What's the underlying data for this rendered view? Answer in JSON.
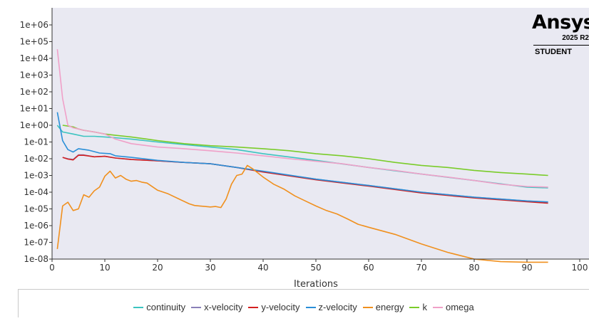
{
  "branding": {
    "name": "Ansys",
    "version": "2025 R2",
    "edition": "STUDENT"
  },
  "chart_data": {
    "type": "line",
    "title": "",
    "xlabel": "Iterations",
    "ylabel": "",
    "yscale": "log",
    "xlim": [
      0,
      100
    ],
    "ylim": [
      1e-08,
      1000000.0
    ],
    "x_ticks": [
      "0",
      "10",
      "20",
      "30",
      "40",
      "50",
      "60",
      "70",
      "80",
      "90",
      "100"
    ],
    "y_ticks": [
      "1e-08",
      "1e-07",
      "1e-06",
      "1e-05",
      "1e-04",
      "1e-03",
      "1e-02",
      "1e-01",
      "1e+00",
      "1e+01",
      "1e+02",
      "1e+03",
      "1e+04",
      "1e+05",
      "1e+06"
    ],
    "grid": false,
    "legend_position": "bottom",
    "series": [
      {
        "name": "continuity",
        "color": "#3cc4c0",
        "x": [
          1,
          2,
          4,
          6,
          8,
          10,
          12,
          15,
          20,
          25,
          30,
          35,
          40,
          50,
          60,
          70,
          80,
          90,
          94
        ],
        "y": [
          1.0,
          0.4,
          0.3,
          0.22,
          0.22,
          0.2,
          0.18,
          0.15,
          0.1,
          0.07,
          0.05,
          0.035,
          0.02,
          0.008,
          0.003,
          0.0012,
          0.0005,
          0.0002,
          0.00018
        ]
      },
      {
        "name": "x-velocity",
        "color": "#8a80b8",
        "x": [
          2,
          3,
          4,
          5,
          6,
          8,
          10,
          12,
          15,
          20,
          25,
          30,
          35,
          40,
          50,
          60,
          70,
          80,
          90,
          94
        ],
        "y": [
          0.012,
          0.01,
          0.009,
          0.017,
          0.017,
          0.013,
          0.014,
          0.011,
          0.009,
          0.0075,
          0.006,
          0.005,
          0.003,
          0.0017,
          0.0006,
          0.00025,
          0.0001,
          5e-05,
          3e-05,
          2.5e-05
        ]
      },
      {
        "name": "y-velocity",
        "color": "#d42020",
        "x": [
          2,
          3,
          4,
          5,
          6,
          8,
          10,
          12,
          15,
          20,
          25,
          30,
          35,
          40,
          50,
          60,
          70,
          80,
          90,
          94
        ],
        "y": [
          0.012,
          0.0095,
          0.0085,
          0.016,
          0.016,
          0.013,
          0.014,
          0.011,
          0.009,
          0.0075,
          0.006,
          0.005,
          0.003,
          0.0016,
          0.00055,
          0.00023,
          9e-05,
          4.5e-05,
          2.7e-05,
          2.2e-05
        ]
      },
      {
        "name": "z-velocity",
        "color": "#2a8fd8",
        "x": [
          1,
          2,
          3,
          4,
          5,
          7,
          9,
          11,
          12,
          15,
          20,
          25,
          30,
          35,
          40,
          50,
          60,
          70,
          80,
          90,
          94
        ],
        "y": [
          6,
          0.12,
          0.035,
          0.025,
          0.04,
          0.032,
          0.022,
          0.02,
          0.015,
          0.012,
          0.008,
          0.006,
          0.005,
          0.003,
          0.0018,
          0.0006,
          0.00025,
          0.0001,
          5e-05,
          3e-05,
          2.6e-05
        ]
      },
      {
        "name": "energy",
        "color": "#f0901e",
        "x": [
          1,
          2,
          3,
          4,
          5,
          6,
          7,
          8,
          9,
          10,
          11,
          12,
          13,
          14,
          15,
          16,
          17,
          18,
          20,
          22,
          24,
          26,
          27,
          28,
          29,
          30,
          31,
          32,
          33,
          34,
          35,
          36,
          37,
          38,
          40,
          42,
          44,
          46,
          48,
          50,
          52,
          54,
          56,
          58,
          60,
          65,
          70,
          75,
          80,
          85,
          90,
          94
        ],
        "y": [
          4e-08,
          1.5e-05,
          2.5e-05,
          8e-06,
          1e-05,
          7e-05,
          5e-05,
          0.00012,
          0.0002,
          0.0009,
          0.0018,
          0.0007,
          0.001,
          0.0006,
          0.00045,
          0.0005,
          0.0004,
          0.00035,
          0.00013,
          8e-05,
          4e-05,
          2e-05,
          1.6e-05,
          1.5e-05,
          1.4e-05,
          1.3e-05,
          1.4e-05,
          1.2e-05,
          4e-05,
          0.0003,
          0.001,
          0.0012,
          0.004,
          0.0025,
          0.0008,
          0.0003,
          0.00015,
          6e-05,
          3e-05,
          1.5e-05,
          8e-06,
          5e-06,
          2.5e-06,
          1.2e-06,
          8e-07,
          3e-07,
          8e-08,
          2.5e-08,
          1e-08,
          7e-09,
          6.5e-09,
          6.5e-09
        ]
      },
      {
        "name": "k",
        "color": "#7acc2a",
        "x": [
          2,
          3,
          4,
          5,
          6,
          8,
          10,
          12,
          15,
          18,
          20,
          25,
          30,
          35,
          40,
          45,
          50,
          55,
          60,
          65,
          70,
          75,
          80,
          85,
          90,
          94
        ],
        "y": [
          1,
          0.9,
          0.8,
          0.6,
          0.5,
          0.4,
          0.3,
          0.25,
          0.2,
          0.15,
          0.12,
          0.08,
          0.06,
          0.05,
          0.04,
          0.03,
          0.02,
          0.015,
          0.01,
          0.006,
          0.004,
          0.003,
          0.002,
          0.0015,
          0.0012,
          0.001
        ]
      },
      {
        "name": "omega",
        "color": "#f0a0c8",
        "x": [
          1,
          2,
          3,
          4,
          5,
          6,
          8,
          10,
          12,
          15,
          20,
          25,
          30,
          35,
          40,
          45,
          50,
          55,
          60,
          65,
          70,
          75,
          80,
          85,
          90,
          94
        ],
        "y": [
          35000,
          40,
          1,
          0.7,
          0.6,
          0.5,
          0.4,
          0.3,
          0.15,
          0.08,
          0.05,
          0.04,
          0.03,
          0.022,
          0.015,
          0.01,
          0.007,
          0.005,
          0.003,
          0.002,
          0.0012,
          0.0008,
          0.0005,
          0.0003,
          0.00022,
          0.0002
        ]
      }
    ]
  }
}
